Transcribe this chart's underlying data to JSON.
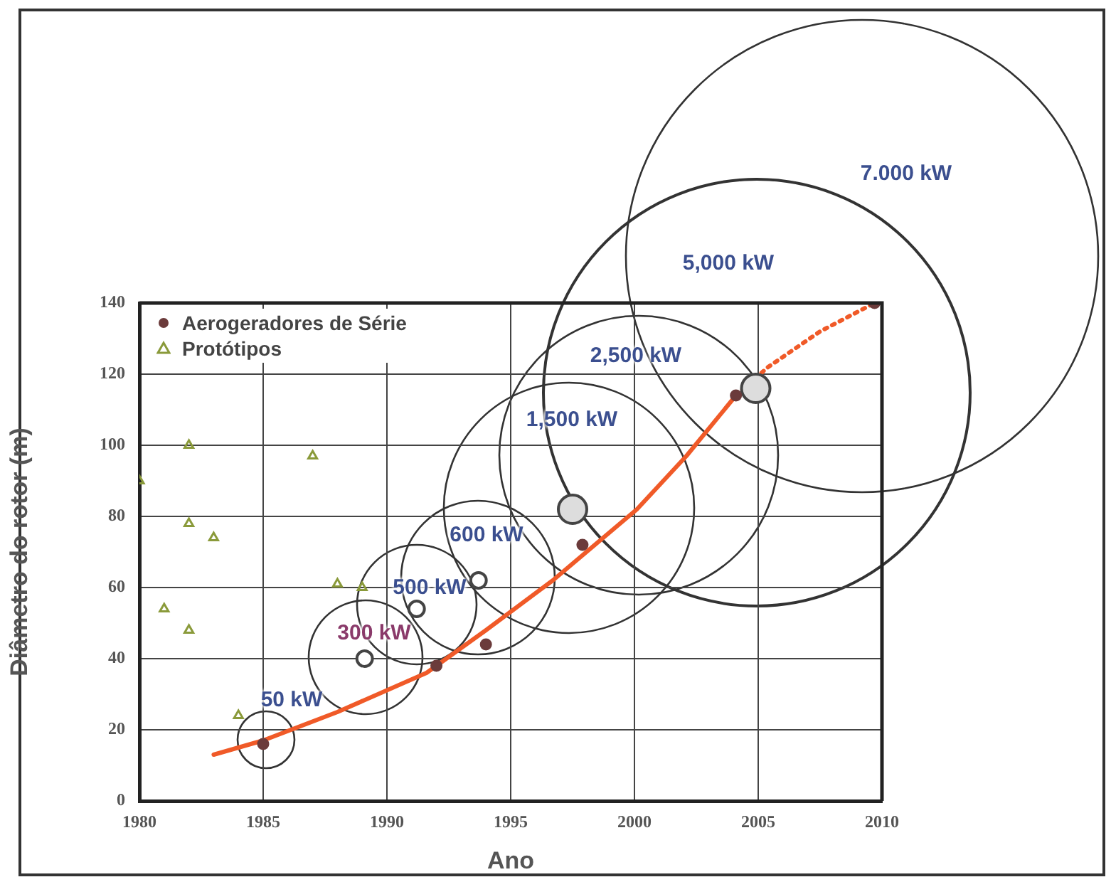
{
  "chart_data": {
    "type": "scatter",
    "xlabel": "Ano",
    "ylabel": "Diâmetro do rotor (m)",
    "xlim": [
      1980,
      2010
    ],
    "xticks": [
      1980,
      1985,
      1990,
      1995,
      2000,
      2005,
      2010
    ],
    "ylim": [
      0,
      140
    ],
    "yticks": [
      0,
      20,
      40,
      60,
      80,
      100,
      120,
      140
    ],
    "grid": true,
    "legend": "top left",
    "annotations": [
      "50 kW",
      "300 kW",
      "500 kW",
      "600 kW",
      "1,500 kW",
      "2,500 kW",
      "5,000 kW",
      "7.000 kW"
    ],
    "series": [
      {
        "name": "Aerogeradores de Série",
        "type": "scatter",
        "marker": "circle",
        "color": "#6b3b3b",
        "x": [
          1985,
          1992,
          1994,
          1997.9,
          2004.1,
          2009.7
        ],
        "values": [
          16,
          38,
          44,
          72,
          114,
          140
        ]
      },
      {
        "name": "Protótipos",
        "type": "scatter",
        "marker": "triangle",
        "color": "#8a9a3a",
        "x": [
          1980,
          1981,
          1982,
          1982,
          1982,
          1983,
          1984,
          1987,
          1988,
          1989
        ],
        "values": [
          90,
          54,
          100,
          78,
          48,
          74,
          24,
          97,
          61,
          60
        ]
      },
      {
        "type": "line",
        "marker": "none",
        "line_style": "solid",
        "color": "#f05a28",
        "x": [
          1983,
          1985,
          1988,
          1991.6,
          1994,
          1996.7,
          2000.1,
          2002.1,
          2004.1
        ],
        "values": [
          13,
          17,
          25,
          36,
          48,
          62,
          82,
          97,
          114
        ]
      },
      {
        "type": "bubble",
        "marker": "circle",
        "color": "#444444",
        "colors": [
          "#ffffff",
          "#ffffff",
          "#ffffff",
          "#dddddd",
          "#dddddd"
        ],
        "x": [
          1989.1,
          1991.2,
          1993.7,
          1997.5,
          2004.9
        ],
        "values": [
          40,
          54,
          62,
          82,
          116
        ],
        "sizes": [
          0.3,
          0.3,
          0.3,
          1,
          1
        ]
      },
      {
        "type": "line",
        "marker": "none",
        "line_style": "dotted",
        "color": "#f05a28",
        "x": [
          2004.1,
          2005.4,
          2007.5,
          2009.7
        ],
        "values": [
          114,
          122,
          132,
          140
        ]
      }
    ]
  }
}
